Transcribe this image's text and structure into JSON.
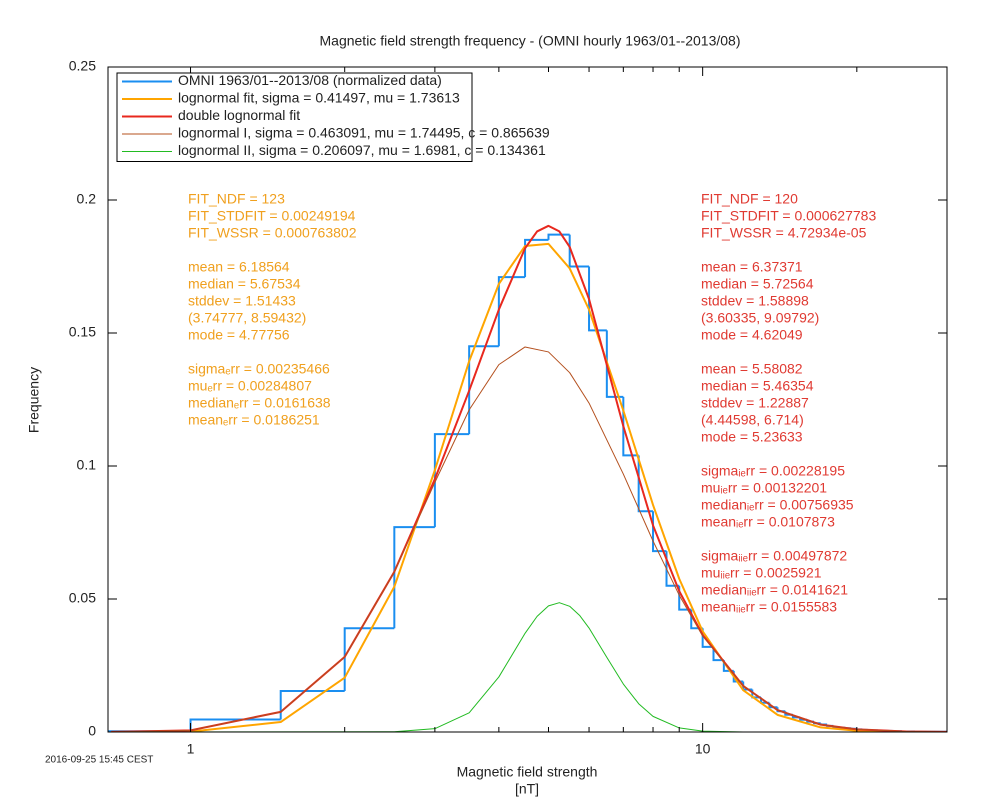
{
  "chart_data": {
    "type": "line",
    "title": "Magnetic field strength frequency  -  (OMNI hourly 1963/01--2013/08)",
    "xlabel": "Magnetic field strength",
    "xunit": "[nT]",
    "ylabel": "Frequency",
    "footer": "2016-09-25 15:45 CEST",
    "xscale": "log",
    "xlim": [
      0.69,
      30
    ],
    "xticks": [
      1,
      10
    ],
    "xminor": [
      2,
      3,
      4,
      5,
      6,
      7,
      8,
      9,
      20,
      30
    ],
    "ylim": [
      0,
      0.25
    ],
    "yticks": [
      0,
      0.05,
      0.1,
      0.15,
      0.2,
      0.25
    ],
    "legend": "top-left",
    "series": [
      {
        "name": "OMNI 1963/01--2013/08 (normalized data)",
        "color": "#1a8ef0",
        "style": "step",
        "bins": [
          0.5,
          1,
          1.5,
          2,
          2.5,
          3,
          3.5,
          4,
          4.5,
          5,
          5.5,
          6,
          6.5,
          7,
          7.5,
          8,
          8.5,
          9,
          9.5,
          10,
          10.5,
          11,
          11.5,
          12,
          12.5,
          13,
          13.5,
          14,
          14.5,
          15,
          15.5,
          16,
          16.5,
          17,
          17.5,
          18,
          18.5,
          19,
          19.5,
          20,
          20.5,
          21,
          21.5,
          22,
          22.5,
          23,
          23.5,
          24,
          24.5,
          25,
          25.5,
          26,
          26.5,
          27,
          27.5,
          28,
          28.5,
          29,
          29.5,
          30
        ],
        "values": [
          0.0003,
          0.0047,
          0.0154,
          0.039,
          0.077,
          0.112,
          0.145,
          0.171,
          0.185,
          0.187,
          0.175,
          0.151,
          0.126,
          0.104,
          0.083,
          0.068,
          0.055,
          0.046,
          0.039,
          0.032,
          0.027,
          0.023,
          0.019,
          0.016,
          0.013,
          0.011,
          0.0093,
          0.0078,
          0.0065,
          0.0055,
          0.0046,
          0.0039,
          0.0033,
          0.0028,
          0.0023,
          0.0019,
          0.0016,
          0.0014,
          0.0012,
          0.001,
          0.0008,
          0.0007,
          0.0006,
          0.0005,
          0.0004,
          0.0004,
          0.0003,
          0.0003,
          0.0002,
          0.0002,
          0.0002,
          0.0001,
          0.0001,
          0.0001,
          0.0001,
          0.0001,
          0.0001,
          0.0001,
          0.0001
        ]
      },
      {
        "name": "lognormal fit, sigma = 0.41497, mu = 1.73613",
        "color": "#ffa500",
        "style": "curve",
        "width": 2,
        "x": [
          0.7,
          1,
          1.5,
          2,
          2.5,
          3,
          3.5,
          4,
          4.5,
          5,
          5.5,
          6,
          7,
          8,
          9,
          10,
          12,
          14,
          17,
          20,
          25,
          30
        ],
        "values": [
          4e-06,
          0.000152,
          0.00375,
          0.02042,
          0.05463,
          0.09845,
          0.13939,
          0.16847,
          0.18272,
          0.18351,
          0.17429,
          0.15879,
          0.12086,
          0.08535,
          0.05762,
          0.03786,
          0.01573,
          0.00644,
          0.00172,
          0.00048,
          6.5e-05,
          1e-05
        ]
      },
      {
        "name": "double lognormal fit",
        "color": "#e8281e",
        "style": "curve",
        "width": 2,
        "x": [
          0.7,
          1,
          1.5,
          2,
          2.5,
          3,
          3.5,
          4,
          4.5,
          4.75,
          5,
          5.25,
          5.5,
          6,
          7,
          8,
          9,
          10,
          12,
          14,
          17,
          20,
          25,
          30
        ],
        "values": [
          3.6e-05,
          0.000616,
          0.00758,
          0.02826,
          0.06024,
          0.09511,
          0.12831,
          0.15881,
          0.18186,
          0.18818,
          0.19029,
          0.18819,
          0.18234,
          0.16274,
          0.11499,
          0.07768,
          0.05297,
          0.03646,
          0.01734,
          0.00826,
          0.00277,
          0.00097,
          0.000188,
          4.1e-05
        ]
      },
      {
        "name": "lognormal I, sigma = 0.463091, mu = 1.74495, c = 0.865639",
        "color": "#b4501e",
        "style": "curve",
        "width": 1,
        "x": [
          0.7,
          1,
          1.5,
          2,
          2.5,
          3,
          3.5,
          4,
          4.5,
          5,
          5.5,
          6,
          7,
          8,
          9,
          10,
          12,
          14,
          17,
          20,
          25,
          30
        ],
        "values": [
          3.6e-05,
          0.000616,
          0.00758,
          0.02826,
          0.06016,
          0.09385,
          0.12111,
          0.13811,
          0.14475,
          0.14288,
          0.13508,
          0.12365,
          0.09696,
          0.07181,
          0.05143,
          0.03611,
          0.01733,
          0.00826,
          0.00277,
          0.00097,
          0.000188,
          4.1e-05
        ]
      },
      {
        "name": "lognormal II, sigma = 0.206097, mu = 1.6981, c = 0.134361",
        "color": "#22bb22",
        "style": "curve",
        "width": 1,
        "x": [
          0.7,
          2.5,
          3,
          3.5,
          4,
          4.25,
          4.5,
          4.75,
          5,
          5.25,
          5.5,
          5.75,
          6,
          6.5,
          7,
          7.5,
          8,
          9,
          10,
          12,
          30
        ],
        "values": [
          0,
          7.8e-05,
          0.00126,
          0.0072,
          0.0207,
          0.02912,
          0.03711,
          0.04347,
          0.04741,
          0.04862,
          0.04726,
          0.04386,
          0.03909,
          0.02805,
          0.01803,
          0.01064,
          0.00587,
          0.00154,
          0.00035,
          1.48e-05,
          0
        ]
      }
    ],
    "annotations": [
      {
        "color": "#f0a01e",
        "side": "left",
        "groups": [
          [
            "FIT_NDF = 123",
            "FIT_STDFIT = 0.00249194",
            "FIT_WSSR = 0.000763802"
          ],
          [
            "mean = 6.18564",
            "median = 5.67534",
            "stddev = 1.51433",
            "(3.74777, 8.59432)",
            "mode = 4.77756"
          ],
          [
            "sigmaₑrr = 0.00235466",
            "muₑrr = 0.00284807",
            "medianₑrr = 0.0161638",
            "meanₑrr = 0.0186251"
          ]
        ]
      },
      {
        "color": "#e03a32",
        "side": "right",
        "groups": [
          [
            "FIT_NDF = 120",
            "FIT_STDFIT = 0.000627783",
            "FIT_WSSR = 4.72934e-05"
          ],
          [
            "mean = 6.37371",
            "median = 5.72564",
            "stddev = 1.58898",
            "(3.60335, 9.09792)",
            "mode = 4.62049"
          ],
          [
            "mean = 5.58082",
            "median = 5.46354",
            "stddev = 1.22887",
            "(4.44598, 6.714)",
            "mode = 5.23633"
          ],
          [
            "sigmaᵢₑrr = 0.00228195",
            "muᵢₑrr = 0.00132201",
            "medianᵢₑrr = 0.00756935",
            "meanᵢₑrr = 0.0107873"
          ],
          [
            "sigmaᵢᵢₑrr = 0.00497872",
            "muᵢᵢₑrr = 0.0025921",
            "medianᵢᵢₑrr = 0.0141621",
            "meanᵢᵢₑrr = 0.0155583"
          ]
        ]
      }
    ]
  }
}
